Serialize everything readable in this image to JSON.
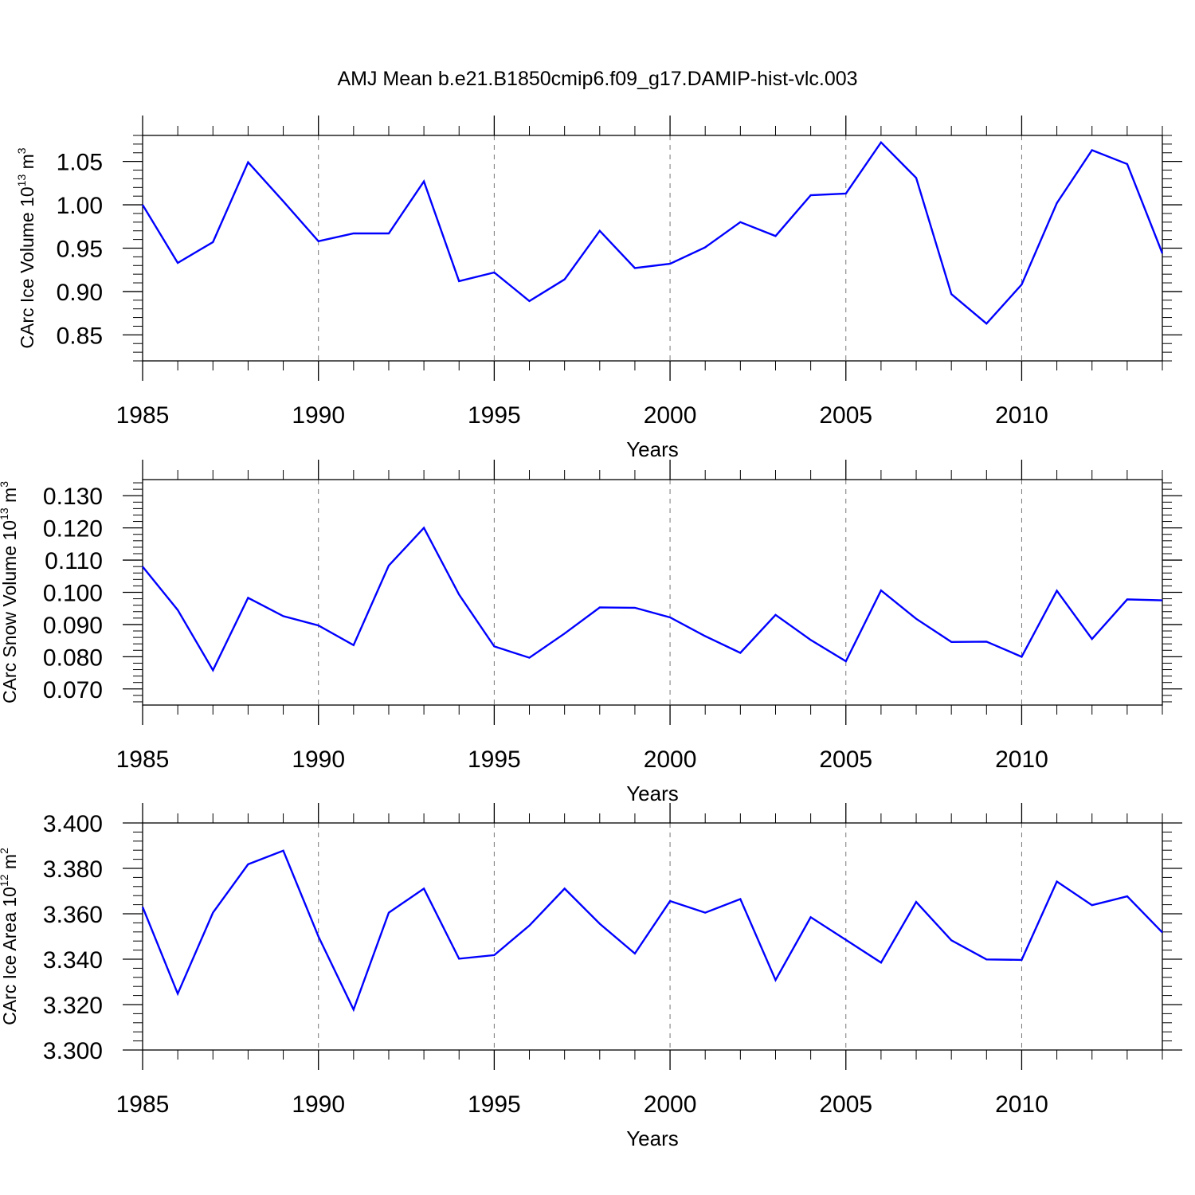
{
  "title": "AMJ Mean b.e21.B1850cmip6.f09_g17.DAMIP-hist-vlc.003",
  "colors": {
    "line": "#0000ff",
    "axis": "#000000",
    "grid": "#777777",
    "background": "#ffffff"
  },
  "chart_data": [
    {
      "type": "line",
      "xlabel": "Years",
      "ylabel": {
        "text": "CArc Ice Volume 10",
        "exponent": "13",
        "unit": "m",
        "unit_exponent": "3"
      },
      "xlim": [
        1985,
        2014
      ],
      "ylim": [
        0.82,
        1.08
      ],
      "x_ticks": [
        1985,
        1990,
        1995,
        2000,
        2005,
        2010
      ],
      "y_ticks": [
        "0.85",
        "0.90",
        "0.95",
        "1.00",
        "1.05"
      ],
      "grid": "vertical dashed",
      "x": [
        1985,
        1986,
        1987,
        1988,
        1989,
        1990,
        1991,
        1992,
        1993,
        1994,
        1995,
        1996,
        1997,
        1998,
        1999,
        2000,
        2001,
        2002,
        2003,
        2004,
        2005,
        2006,
        2007,
        2008,
        2009,
        2010,
        2011,
        2012,
        2013,
        2014
      ],
      "values": [
        1.0,
        0.933,
        0.957,
        1.049,
        1.004,
        0.958,
        0.967,
        0.967,
        1.027,
        0.912,
        0.922,
        0.889,
        0.914,
        0.97,
        0.927,
        0.932,
        0.951,
        0.98,
        0.964,
        1.011,
        1.013,
        1.072,
        1.031,
        0.897,
        0.863,
        0.908,
        1.002,
        1.063,
        1.047,
        0.944
      ]
    },
    {
      "type": "line",
      "xlabel": "Years",
      "ylabel": {
        "text": "CArc Snow Volume 10",
        "exponent": "13",
        "unit": "m",
        "unit_exponent": "3"
      },
      "xlim": [
        1985,
        2014
      ],
      "ylim": [
        0.065,
        0.135
      ],
      "x_ticks": [
        1985,
        1990,
        1995,
        2000,
        2005,
        2010
      ],
      "y_ticks": [
        "0.070",
        "0.080",
        "0.090",
        "0.100",
        "0.110",
        "0.120",
        "0.130"
      ],
      "grid": "vertical dashed",
      "x": [
        1985,
        1986,
        1987,
        1988,
        1989,
        1990,
        1991,
        1992,
        1993,
        1994,
        1995,
        1996,
        1997,
        1998,
        1999,
        2000,
        2001,
        2002,
        2003,
        2004,
        2005,
        2006,
        2007,
        2008,
        2009,
        2010,
        2011,
        2012,
        2013,
        2014
      ],
      "values": [
        0.108,
        0.0945,
        0.0758,
        0.0983,
        0.0926,
        0.0897,
        0.0836,
        0.1083,
        0.12,
        0.0993,
        0.0832,
        0.0797,
        0.0872,
        0.0953,
        0.0952,
        0.0922,
        0.0864,
        0.0812,
        0.093,
        0.0852,
        0.0786,
        0.1006,
        0.0918,
        0.0846,
        0.0847,
        0.08,
        0.1005,
        0.0855,
        0.0978,
        0.0975
      ]
    },
    {
      "type": "line",
      "xlabel": "Years",
      "ylabel": {
        "text": "CArc Ice Area 10",
        "exponent": "12",
        "unit": "m",
        "unit_exponent": "2"
      },
      "xlim": [
        1985,
        2014
      ],
      "ylim": [
        3.3,
        3.4
      ],
      "x_ticks": [
        1985,
        1990,
        1995,
        2000,
        2005,
        2010
      ],
      "y_ticks": [
        "3.300",
        "3.320",
        "3.340",
        "3.360",
        "3.380",
        "3.400"
      ],
      "grid": "vertical dashed",
      "x": [
        1985,
        1986,
        1987,
        1988,
        1989,
        1990,
        1991,
        1992,
        1993,
        1994,
        1995,
        1996,
        1997,
        1998,
        1999,
        2000,
        2001,
        2002,
        2003,
        2004,
        2005,
        2006,
        2007,
        2008,
        2009,
        2010,
        2011,
        2012,
        2013,
        2014
      ],
      "values": [
        3.363,
        3.3248,
        3.3605,
        3.3818,
        3.3878,
        3.35,
        3.3178,
        3.3605,
        3.3711,
        3.3402,
        3.3418,
        3.3548,
        3.3711,
        3.3556,
        3.3425,
        3.3656,
        3.3605,
        3.3665,
        3.3308,
        3.3585,
        3.3485,
        3.3385,
        3.3652,
        3.3483,
        3.3399,
        3.3397,
        3.3742,
        3.3638,
        3.3677,
        3.3518
      ]
    }
  ]
}
